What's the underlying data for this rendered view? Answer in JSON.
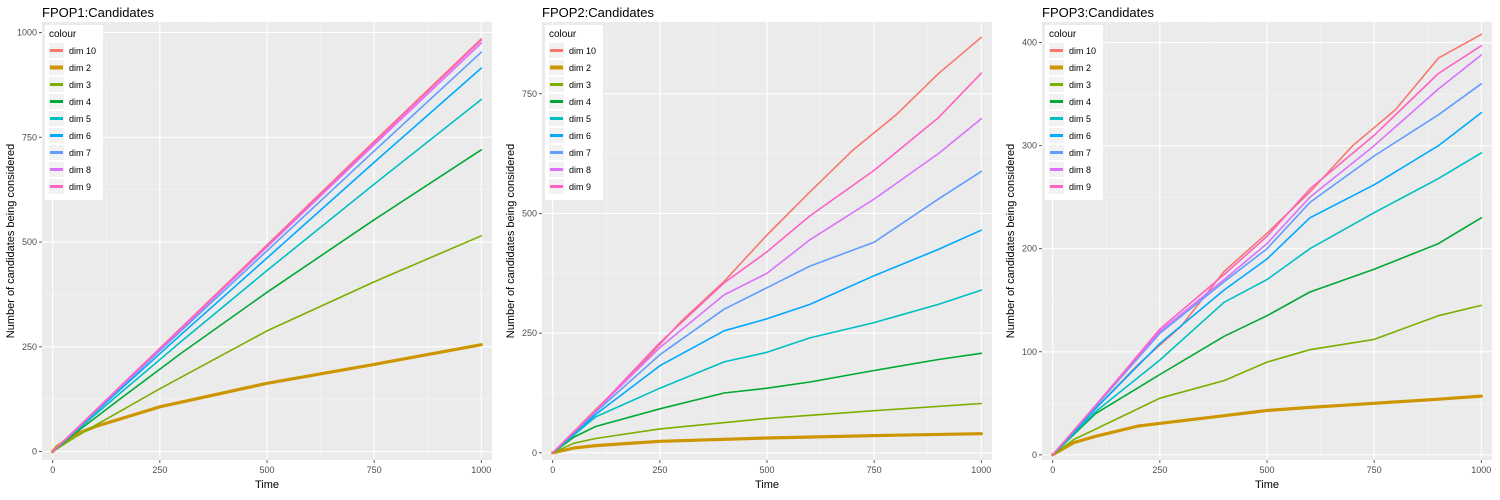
{
  "chart_data": [
    {
      "type": "line",
      "title": "FPOP1:Candidates",
      "xlabel": "Time",
      "ylabel": "Number of candidates being considered",
      "xlim": [
        -25,
        1025
      ],
      "ylim": [
        -20,
        1025
      ],
      "xticks": [
        0,
        250,
        500,
        750,
        1000
      ],
      "yticks": [
        0,
        250,
        500,
        750,
        1000
      ],
      "legend_title": "colour",
      "legend_position": "top-left",
      "grid": true,
      "series": [
        {
          "name": "dim 10",
          "color": "#F8766D",
          "x": [
            0,
            50,
            150,
            300,
            500,
            750,
            1000
          ],
          "y": [
            0,
            49,
            148,
            296,
            493,
            740,
            985
          ]
        },
        {
          "name": "dim 2",
          "color": "#CD9600",
          "x": [
            0,
            10,
            50,
            100,
            250,
            500,
            750,
            1000
          ],
          "y": [
            0,
            12,
            40,
            60,
            107,
            163,
            208,
            255
          ]
        },
        {
          "name": "dim 3",
          "color": "#7CAE00",
          "x": [
            0,
            50,
            100,
            250,
            500,
            750,
            1000
          ],
          "y": [
            0,
            33,
            63,
            150,
            288,
            405,
            515
          ]
        },
        {
          "name": "dim 4",
          "color": "#00A933",
          "x": [
            0,
            50,
            150,
            300,
            500,
            750,
            1000
          ],
          "y": [
            0,
            42,
            120,
            235,
            380,
            553,
            720
          ]
        },
        {
          "name": "dim 5",
          "color": "#00BFC4",
          "x": [
            0,
            50,
            150,
            300,
            500,
            750,
            1000
          ],
          "y": [
            0,
            45,
            133,
            263,
            432,
            638,
            840
          ]
        },
        {
          "name": "dim 6",
          "color": "#00A9FF",
          "x": [
            0,
            50,
            150,
            300,
            500,
            750,
            1000
          ],
          "y": [
            0,
            47,
            141,
            280,
            462,
            690,
            915
          ]
        },
        {
          "name": "dim 7",
          "color": "#619CFF",
          "x": [
            0,
            50,
            150,
            300,
            500,
            750,
            1000
          ],
          "y": [
            0,
            48,
            145,
            289,
            479,
            717,
            953
          ]
        },
        {
          "name": "dim 8",
          "color": "#DB72FB",
          "x": [
            0,
            50,
            150,
            300,
            500,
            750,
            1000
          ],
          "y": [
            0,
            48,
            147,
            293,
            488,
            732,
            975
          ]
        },
        {
          "name": "dim 9",
          "color": "#FF61C3",
          "x": [
            0,
            50,
            150,
            300,
            500,
            750,
            1000
          ],
          "y": [
            0,
            49,
            148,
            295,
            491,
            737,
            982
          ]
        }
      ]
    },
    {
      "type": "line",
      "title": "FPOP2:Candidates",
      "xlabel": "Time",
      "ylabel": "Number of candidates being considered",
      "xlim": [
        -25,
        1025
      ],
      "ylim": [
        -15,
        900
      ],
      "xticks": [
        0,
        250,
        500,
        750,
        1000
      ],
      "yticks": [
        0,
        250,
        500,
        750
      ],
      "legend_title": "colour",
      "legend_position": "top-left",
      "grid": true,
      "series": [
        {
          "name": "dim 10",
          "color": "#F8766D",
          "x": [
            0,
            100,
            200,
            300,
            400,
            500,
            600,
            700,
            800,
            900,
            1000
          ],
          "y": [
            0,
            90,
            178,
            275,
            358,
            455,
            545,
            632,
            705,
            792,
            868
          ]
        },
        {
          "name": "dim 2",
          "color": "#CD9600",
          "x": [
            0,
            50,
            100,
            250,
            500,
            750,
            1000
          ],
          "y": [
            0,
            10,
            15,
            24,
            31,
            36,
            40
          ]
        },
        {
          "name": "dim 3",
          "color": "#7CAE00",
          "x": [
            0,
            50,
            100,
            250,
            500,
            750,
            1000
          ],
          "y": [
            0,
            20,
            30,
            50,
            72,
            88,
            103
          ]
        },
        {
          "name": "dim 4",
          "color": "#00A933",
          "x": [
            0,
            50,
            100,
            250,
            400,
            500,
            600,
            750,
            900,
            1000
          ],
          "y": [
            0,
            33,
            55,
            92,
            125,
            135,
            148,
            172,
            195,
            208
          ]
        },
        {
          "name": "dim 5",
          "color": "#00BFC4",
          "x": [
            0,
            100,
            250,
            400,
            500,
            600,
            750,
            900,
            1000
          ],
          "y": [
            0,
            75,
            135,
            190,
            210,
            240,
            272,
            310,
            340
          ]
        },
        {
          "name": "dim 6",
          "color": "#00A9FF",
          "x": [
            0,
            100,
            250,
            400,
            500,
            600,
            750,
            900,
            1000
          ],
          "y": [
            0,
            80,
            182,
            255,
            280,
            310,
            370,
            425,
            465
          ]
        },
        {
          "name": "dim 7",
          "color": "#619CFF",
          "x": [
            0,
            100,
            250,
            400,
            500,
            600,
            750,
            900,
            1000
          ],
          "y": [
            0,
            85,
            205,
            300,
            345,
            390,
            440,
            530,
            588
          ]
        },
        {
          "name": "dim 8",
          "color": "#DB72FB",
          "x": [
            0,
            100,
            250,
            400,
            500,
            600,
            750,
            900,
            1000
          ],
          "y": [
            0,
            88,
            220,
            330,
            375,
            445,
            530,
            625,
            698
          ]
        },
        {
          "name": "dim 9",
          "color": "#FF61C3",
          "x": [
            0,
            100,
            250,
            400,
            500,
            600,
            750,
            900,
            1000
          ],
          "y": [
            0,
            88,
            230,
            355,
            420,
            495,
            590,
            700,
            793
          ]
        }
      ]
    },
    {
      "type": "line",
      "title": "FPOP3:Candidates",
      "xlabel": "Time",
      "ylabel": "Number of candidates being considered",
      "xlim": [
        -25,
        1025
      ],
      "ylim": [
        -5,
        420
      ],
      "xticks": [
        0,
        250,
        500,
        750,
        1000
      ],
      "yticks": [
        0,
        100,
        200,
        300,
        400
      ],
      "legend_title": "colour",
      "legend_position": "top-left",
      "grid": true,
      "series": [
        {
          "name": "dim 10",
          "color": "#F8766D",
          "x": [
            0,
            100,
            200,
            300,
            400,
            500,
            600,
            700,
            800,
            900,
            1000
          ],
          "y": [
            0,
            45,
            88,
            125,
            178,
            215,
            255,
            300,
            335,
            385,
            408
          ]
        },
        {
          "name": "dim 2",
          "color": "#CD9600",
          "x": [
            0,
            50,
            100,
            200,
            300,
            400,
            500,
            600,
            750,
            900,
            1000
          ],
          "y": [
            0,
            12,
            18,
            28,
            33,
            38,
            43,
            46,
            50,
            54,
            57
          ]
        },
        {
          "name": "dim 3",
          "color": "#7CAE00",
          "x": [
            0,
            50,
            100,
            250,
            400,
            500,
            600,
            750,
            900,
            1000
          ],
          "y": [
            0,
            15,
            25,
            55,
            72,
            90,
            102,
            112,
            135,
            145
          ]
        },
        {
          "name": "dim 4",
          "color": "#00A933",
          "x": [
            0,
            100,
            250,
            400,
            500,
            600,
            750,
            900,
            1000
          ],
          "y": [
            0,
            40,
            78,
            115,
            135,
            158,
            180,
            205,
            230
          ]
        },
        {
          "name": "dim 5",
          "color": "#00BFC4",
          "x": [
            0,
            100,
            250,
            400,
            500,
            600,
            750,
            900,
            1000
          ],
          "y": [
            0,
            42,
            92,
            148,
            170,
            200,
            235,
            268,
            293
          ]
        },
        {
          "name": "dim 6",
          "color": "#00A9FF",
          "x": [
            0,
            100,
            250,
            400,
            500,
            600,
            750,
            900,
            1000
          ],
          "y": [
            0,
            45,
            108,
            160,
            190,
            230,
            262,
            300,
            332
          ]
        },
        {
          "name": "dim 7",
          "color": "#619CFF",
          "x": [
            0,
            100,
            250,
            400,
            500,
            600,
            750,
            900,
            1000
          ],
          "y": [
            0,
            47,
            118,
            168,
            200,
            245,
            290,
            330,
            360
          ]
        },
        {
          "name": "dim 8",
          "color": "#DB72FB",
          "x": [
            0,
            100,
            250,
            400,
            500,
            600,
            750,
            900,
            1000
          ],
          "y": [
            0,
            48,
            120,
            170,
            205,
            250,
            300,
            355,
            388
          ]
        },
        {
          "name": "dim 9",
          "color": "#FF61C3",
          "x": [
            0,
            100,
            250,
            400,
            500,
            600,
            750,
            900,
            1000
          ],
          "y": [
            0,
            48,
            122,
            175,
            212,
            258,
            310,
            370,
            397
          ]
        }
      ]
    }
  ]
}
